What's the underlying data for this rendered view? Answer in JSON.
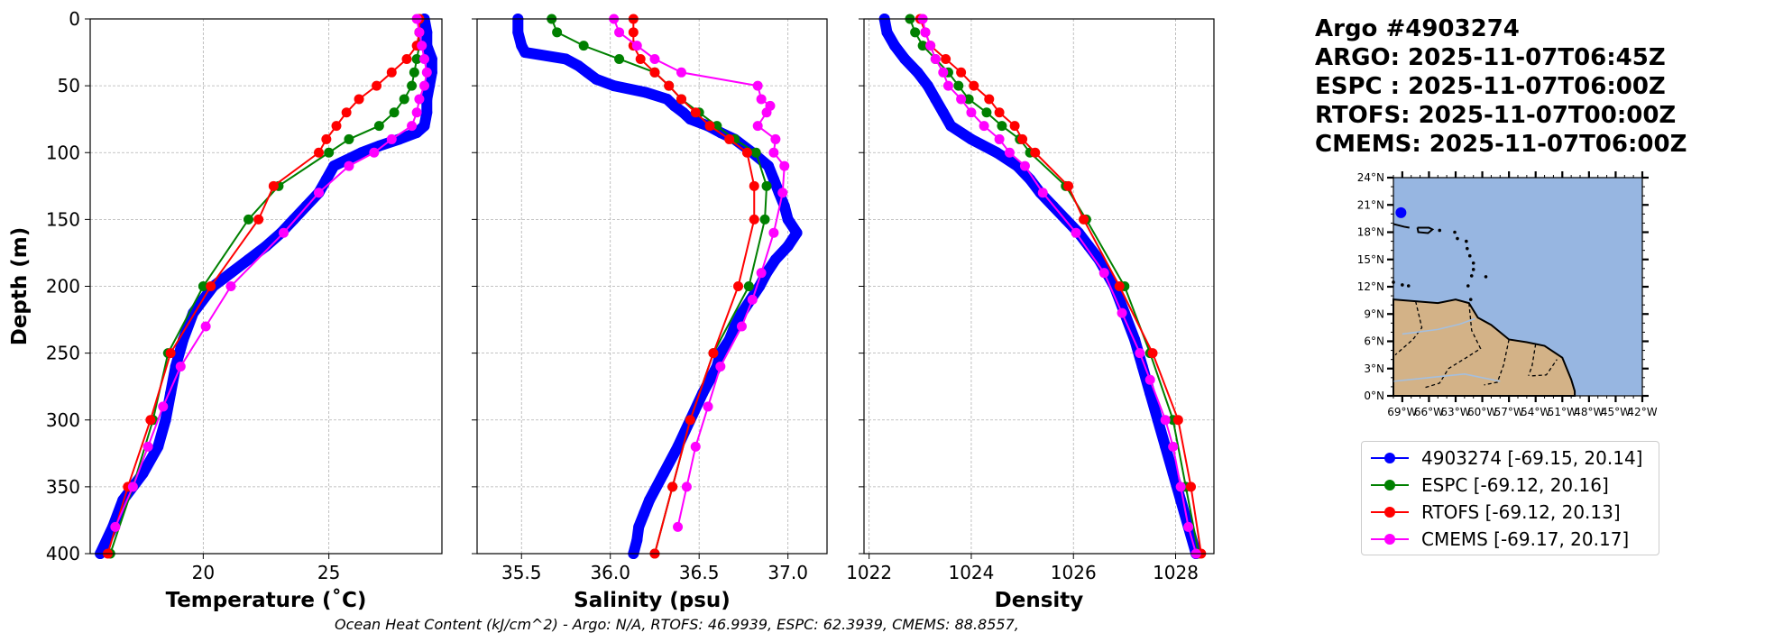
{
  "title_lines": [
    "Argo #4903274",
    "ARGO: 2025-11-07T06:45Z",
    "ESPC : 2025-11-07T06:00Z",
    "RTOFS: 2025-11-07T00:00Z",
    "CMEMS: 2025-11-07T06:00Z"
  ],
  "footer": "Ocean Heat Content (kJ/cm^2) - Argo: N/A,  RTOFS: 46.9939,  ESPC: 62.3939,  CMEMS: 88.8557,",
  "colors": {
    "argo": "#0000ff",
    "espc": "#008000",
    "rtofs": "#ff0000",
    "cmems": "#ff00ff",
    "ocean": "#97b6e1",
    "land": "#d3b287"
  },
  "legend": [
    {
      "label": "4903274 [-69.15, 20.14]",
      "color": "#0000ff"
    },
    {
      "label": "ESPC [-69.12, 20.16]",
      "color": "#008000"
    },
    {
      "label": "RTOFS [-69.12, 20.13]",
      "color": "#ff0000"
    },
    {
      "label": "CMEMS [-69.17, 20.17]",
      "color": "#ff00ff"
    }
  ],
  "chart_data": [
    {
      "type": "line",
      "title": "",
      "xlabel": "Temperature (˚C)",
      "ylabel": "Depth (m)",
      "xlim": [
        15.5,
        29.5
      ],
      "ylim": [
        400,
        0
      ],
      "xticks": [
        20,
        25
      ],
      "yticks": [
        0,
        50,
        100,
        150,
        200,
        250,
        300,
        350,
        400
      ],
      "grid": true,
      "series": [
        {
          "name": "4903274",
          "color": "#0000ff",
          "dense": true,
          "depth": [
            0,
            10,
            20,
            30,
            40,
            50,
            60,
            70,
            80,
            85,
            90,
            95,
            100,
            110,
            120,
            130,
            140,
            150,
            160,
            170,
            180,
            190,
            200,
            220,
            240,
            260,
            280,
            300,
            320,
            340,
            360,
            380,
            400
          ],
          "values": [
            28.8,
            28.9,
            28.9,
            29.1,
            29.1,
            29.0,
            28.9,
            28.9,
            28.8,
            28.5,
            27.8,
            27.0,
            26.3,
            25.2,
            24.9,
            24.6,
            24.1,
            23.6,
            23.1,
            22.5,
            21.8,
            21.1,
            20.4,
            19.6,
            19.2,
            18.9,
            18.7,
            18.5,
            18.2,
            17.6,
            16.8,
            16.4,
            15.9
          ]
        },
        {
          "name": "ESPC",
          "color": "#008000",
          "depth": [
            0,
            10,
            20,
            30,
            40,
            50,
            60,
            70,
            80,
            90,
            100,
            125,
            150,
            200,
            250,
            300,
            350,
            400
          ],
          "values": [
            28.6,
            28.6,
            28.6,
            28.5,
            28.4,
            28.3,
            28.0,
            27.6,
            27.0,
            25.8,
            25.0,
            23.0,
            21.8,
            20.0,
            18.6,
            18.0,
            17.2,
            16.3
          ]
        },
        {
          "name": "RTOFS",
          "color": "#ff0000",
          "depth": [
            0,
            10,
            20,
            30,
            40,
            50,
            60,
            70,
            80,
            90,
            100,
            125,
            150,
            200,
            250,
            300,
            350,
            400
          ],
          "values": [
            28.6,
            28.6,
            28.5,
            28.1,
            27.5,
            26.9,
            26.2,
            25.7,
            25.3,
            24.9,
            24.6,
            22.8,
            22.2,
            20.3,
            18.7,
            17.9,
            17.0,
            16.2
          ]
        },
        {
          "name": "CMEMS",
          "color": "#ff00ff",
          "depth": [
            0,
            10,
            20,
            30,
            40,
            50,
            60,
            70,
            80,
            90,
            100,
            110,
            130,
            160,
            200,
            230,
            260,
            290,
            320,
            350,
            380
          ],
          "values": [
            28.5,
            28.6,
            28.7,
            28.8,
            28.9,
            28.8,
            28.6,
            28.5,
            28.3,
            27.5,
            26.8,
            25.8,
            24.6,
            23.2,
            21.1,
            20.1,
            19.1,
            18.4,
            17.8,
            17.2,
            16.5
          ]
        }
      ]
    },
    {
      "type": "line",
      "title": "",
      "xlabel": "Salinity (psu)",
      "ylabel": "",
      "xlim": [
        35.25,
        37.22
      ],
      "ylim": [
        400,
        0
      ],
      "xticks": [
        35.5,
        36.0,
        36.5,
        37.0
      ],
      "xtick_labels": [
        "35.5",
        "36.0",
        "36.5",
        "37.0"
      ],
      "yticks": [
        0,
        50,
        100,
        150,
        200,
        250,
        300,
        350,
        400
      ],
      "grid": true,
      "series": [
        {
          "name": "4903274",
          "color": "#0000ff",
          "dense": true,
          "depth": [
            0,
            10,
            20,
            25,
            30,
            35,
            40,
            45,
            50,
            55,
            60,
            65,
            70,
            75,
            80,
            85,
            90,
            100,
            110,
            120,
            130,
            140,
            150,
            160,
            170,
            180,
            190,
            200,
            210,
            220,
            230,
            240,
            250,
            260,
            270,
            280,
            300,
            320,
            340,
            360,
            370,
            380,
            390,
            400
          ],
          "values": [
            35.48,
            35.48,
            35.5,
            35.52,
            35.75,
            35.82,
            35.87,
            35.92,
            36.02,
            36.2,
            36.32,
            36.36,
            36.41,
            36.45,
            36.55,
            36.62,
            36.7,
            36.8,
            36.89,
            36.92,
            36.95,
            36.98,
            37.0,
            37.05,
            37.0,
            36.93,
            36.88,
            36.84,
            36.79,
            36.74,
            36.7,
            36.67,
            36.62,
            36.6,
            36.56,
            36.52,
            36.45,
            36.38,
            36.3,
            36.22,
            36.19,
            36.16,
            36.15,
            36.13
          ]
        },
        {
          "name": "ESPC",
          "color": "#008000",
          "depth": [
            0,
            10,
            20,
            30,
            40,
            50,
            60,
            70,
            80,
            90,
            100,
            125,
            150,
            200,
            250,
            300,
            350,
            400
          ],
          "values": [
            35.67,
            35.7,
            35.85,
            36.05,
            36.25,
            36.33,
            36.4,
            36.5,
            36.6,
            36.7,
            36.82,
            36.88,
            36.87,
            36.78,
            36.58,
            36.45,
            36.35,
            36.25
          ]
        },
        {
          "name": "RTOFS",
          "color": "#ff0000",
          "depth": [
            0,
            10,
            20,
            30,
            40,
            50,
            60,
            70,
            80,
            90,
            100,
            125,
            150,
            200,
            250,
            300,
            350,
            400
          ],
          "values": [
            36.13,
            36.13,
            36.13,
            36.17,
            36.25,
            36.33,
            36.4,
            36.48,
            36.56,
            36.67,
            36.77,
            36.81,
            36.81,
            36.72,
            36.58,
            36.45,
            36.35,
            36.25
          ]
        },
        {
          "name": "CMEMS",
          "color": "#ff00ff",
          "depth": [
            0,
            10,
            20,
            30,
            40,
            50,
            60,
            65,
            70,
            80,
            90,
            100,
            110,
            130,
            160,
            190,
            210,
            230,
            260,
            290,
            320,
            350,
            380
          ],
          "values": [
            36.02,
            36.05,
            36.15,
            36.25,
            36.4,
            36.83,
            36.85,
            36.9,
            36.88,
            36.83,
            36.93,
            36.92,
            36.98,
            36.97,
            36.92,
            36.85,
            36.8,
            36.74,
            36.62,
            36.55,
            36.48,
            36.43,
            36.38
          ]
        }
      ]
    },
    {
      "type": "line",
      "title": "",
      "xlabel": "Density",
      "ylabel": "",
      "xlim": [
        1021.9,
        1028.75
      ],
      "ylim": [
        400,
        0
      ],
      "xticks": [
        1022,
        1024,
        1026,
        1028
      ],
      "yticks": [
        0,
        50,
        100,
        150,
        200,
        250,
        300,
        350,
        400
      ],
      "grid": true,
      "series": [
        {
          "name": "4903274",
          "color": "#0000ff",
          "dense": true,
          "depth": [
            0,
            10,
            20,
            30,
            40,
            50,
            60,
            70,
            80,
            90,
            100,
            110,
            120,
            130,
            140,
            150,
            160,
            170,
            180,
            190,
            200,
            220,
            240,
            260,
            280,
            300,
            320,
            340,
            360,
            380,
            400
          ],
          "values": [
            1022.3,
            1022.35,
            1022.5,
            1022.7,
            1022.95,
            1023.15,
            1023.3,
            1023.45,
            1023.6,
            1024.0,
            1024.5,
            1024.9,
            1025.15,
            1025.35,
            1025.6,
            1025.85,
            1026.1,
            1026.3,
            1026.5,
            1026.65,
            1026.8,
            1027.0,
            1027.2,
            1027.35,
            1027.5,
            1027.65,
            1027.8,
            1027.95,
            1028.1,
            1028.25,
            1028.4
          ]
        },
        {
          "name": "ESPC",
          "color": "#008000",
          "depth": [
            0,
            10,
            20,
            30,
            40,
            50,
            60,
            70,
            80,
            90,
            100,
            125,
            150,
            200,
            250,
            300,
            350,
            400
          ],
          "values": [
            1022.8,
            1022.9,
            1023.05,
            1023.3,
            1023.55,
            1023.75,
            1023.95,
            1024.3,
            1024.6,
            1024.95,
            1025.15,
            1025.85,
            1026.25,
            1027.0,
            1027.5,
            1027.95,
            1028.2,
            1028.45
          ]
        },
        {
          "name": "RTOFS",
          "color": "#ff0000",
          "depth": [
            0,
            10,
            20,
            30,
            40,
            50,
            60,
            70,
            80,
            90,
            100,
            125,
            150,
            200,
            250,
            300,
            350,
            400
          ],
          "values": [
            1023.0,
            1023.1,
            1023.2,
            1023.5,
            1023.8,
            1024.05,
            1024.35,
            1024.55,
            1024.85,
            1025.0,
            1025.25,
            1025.9,
            1026.2,
            1026.9,
            1027.55,
            1028.05,
            1028.3,
            1028.5
          ]
        },
        {
          "name": "CMEMS",
          "color": "#ff00ff",
          "depth": [
            0,
            10,
            20,
            30,
            40,
            50,
            60,
            70,
            80,
            90,
            100,
            110,
            130,
            160,
            190,
            220,
            250,
            270,
            300,
            320,
            350,
            380,
            400
          ],
          "values": [
            1023.05,
            1023.1,
            1023.2,
            1023.3,
            1023.45,
            1023.55,
            1023.8,
            1024.0,
            1024.25,
            1024.55,
            1024.75,
            1025.05,
            1025.4,
            1026.05,
            1026.6,
            1026.95,
            1027.3,
            1027.5,
            1027.8,
            1027.95,
            1028.1,
            1028.25,
            1028.4
          ]
        }
      ]
    }
  ],
  "map": {
    "lat_ticks": [
      "24°N",
      "21°N",
      "18°N",
      "15°N",
      "12°N",
      "9°N",
      "6°N",
      "3°N",
      "0°N"
    ],
    "lon_ticks": [
      "69°W",
      "66°W",
      "63°W",
      "60°W",
      "57°W",
      "54°W",
      "51°W",
      "48°W",
      "45°W",
      "42°W"
    ],
    "lon_range": [
      -70,
      -42
    ],
    "lat_range": [
      0,
      24
    ],
    "marker": {
      "lon": -69.15,
      "lat": 20.14
    }
  }
}
